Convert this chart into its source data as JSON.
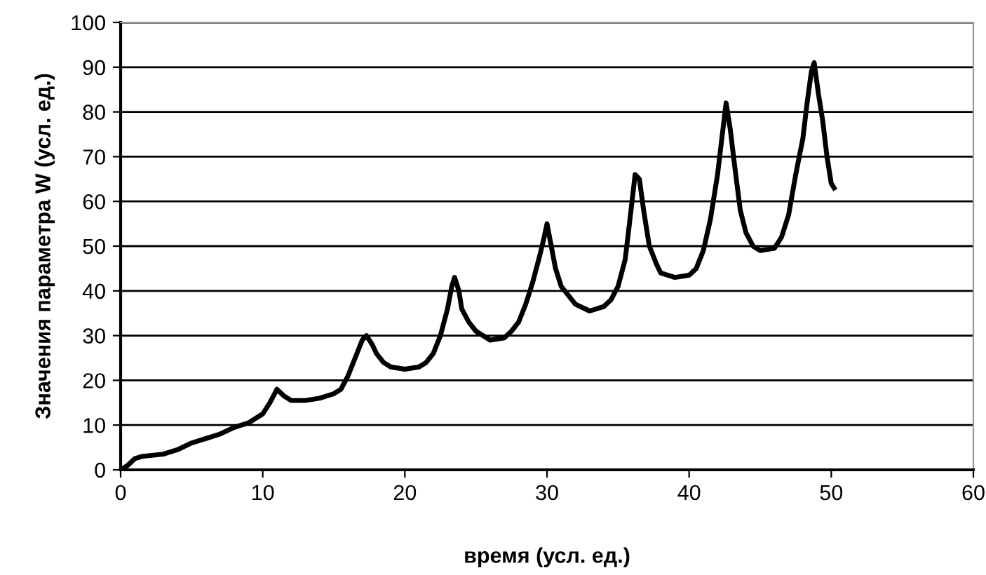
{
  "chart_data": {
    "type": "line",
    "xlabel": "время (усл. ед.)",
    "ylabel": "Значения параметра W (усл. ед.)",
    "xlim": [
      0,
      60
    ],
    "xticks": [
      0,
      10,
      20,
      30,
      40,
      50,
      60
    ],
    "ylim": [
      0,
      100
    ],
    "yticks": [
      0,
      10,
      20,
      30,
      40,
      50,
      60,
      70,
      80,
      90,
      100
    ],
    "grid": "y",
    "legend": false,
    "marker": "none",
    "line_style": "solid",
    "series": [
      {
        "color": "#000000",
        "x": [
          0,
          0.5,
          1,
          1.5,
          3,
          4,
          5,
          6,
          7,
          8,
          9,
          10,
          10.5,
          11,
          11.5,
          12,
          13,
          14,
          15,
          15.5,
          16,
          16.5,
          17,
          17.3,
          17.7,
          18,
          18.5,
          19,
          20,
          21,
          21.5,
          22,
          22.5,
          23,
          23.3,
          23.5,
          23.8,
          24,
          24.5,
          25,
          26,
          27,
          27.5,
          28,
          28.5,
          29,
          29.5,
          29.8,
          30,
          30.3,
          30.6,
          31,
          32,
          33,
          34,
          34.5,
          35,
          35.5,
          35.8,
          36.2,
          36.5,
          36.8,
          37.2,
          37.7,
          38,
          39,
          40,
          40.5,
          41,
          41.5,
          42,
          42.3,
          42.6,
          42.9,
          43.2,
          43.6,
          44,
          44.5,
          45,
          46,
          46.5,
          47,
          47.5,
          48,
          48.3,
          48.6,
          48.8,
          49.1,
          49.4,
          49.7,
          50,
          50.2
        ],
        "values": [
          0,
          1,
          2.5,
          3,
          3.5,
          4.5,
          6,
          7,
          8,
          9.5,
          10.5,
          12.5,
          15,
          18,
          16.5,
          15.5,
          15.5,
          16,
          17,
          18,
          21,
          25,
          29,
          30,
          28,
          26,
          24,
          23,
          22.5,
          23,
          24,
          26,
          30,
          36,
          41,
          43,
          40,
          36,
          33,
          31,
          29,
          29.5,
          31,
          33,
          37,
          42,
          48,
          52,
          55,
          50,
          45,
          41,
          37,
          35.5,
          36.5,
          38,
          41,
          47,
          55,
          66,
          65,
          58,
          50,
          46,
          44,
          43,
          43.5,
          45,
          49,
          56,
          66,
          74,
          82,
          76,
          68,
          58,
          53,
          50,
          49,
          49.5,
          52,
          57,
          66,
          74,
          82,
          89,
          91,
          84,
          78,
          70,
          64,
          63
        ]
      }
    ]
  }
}
